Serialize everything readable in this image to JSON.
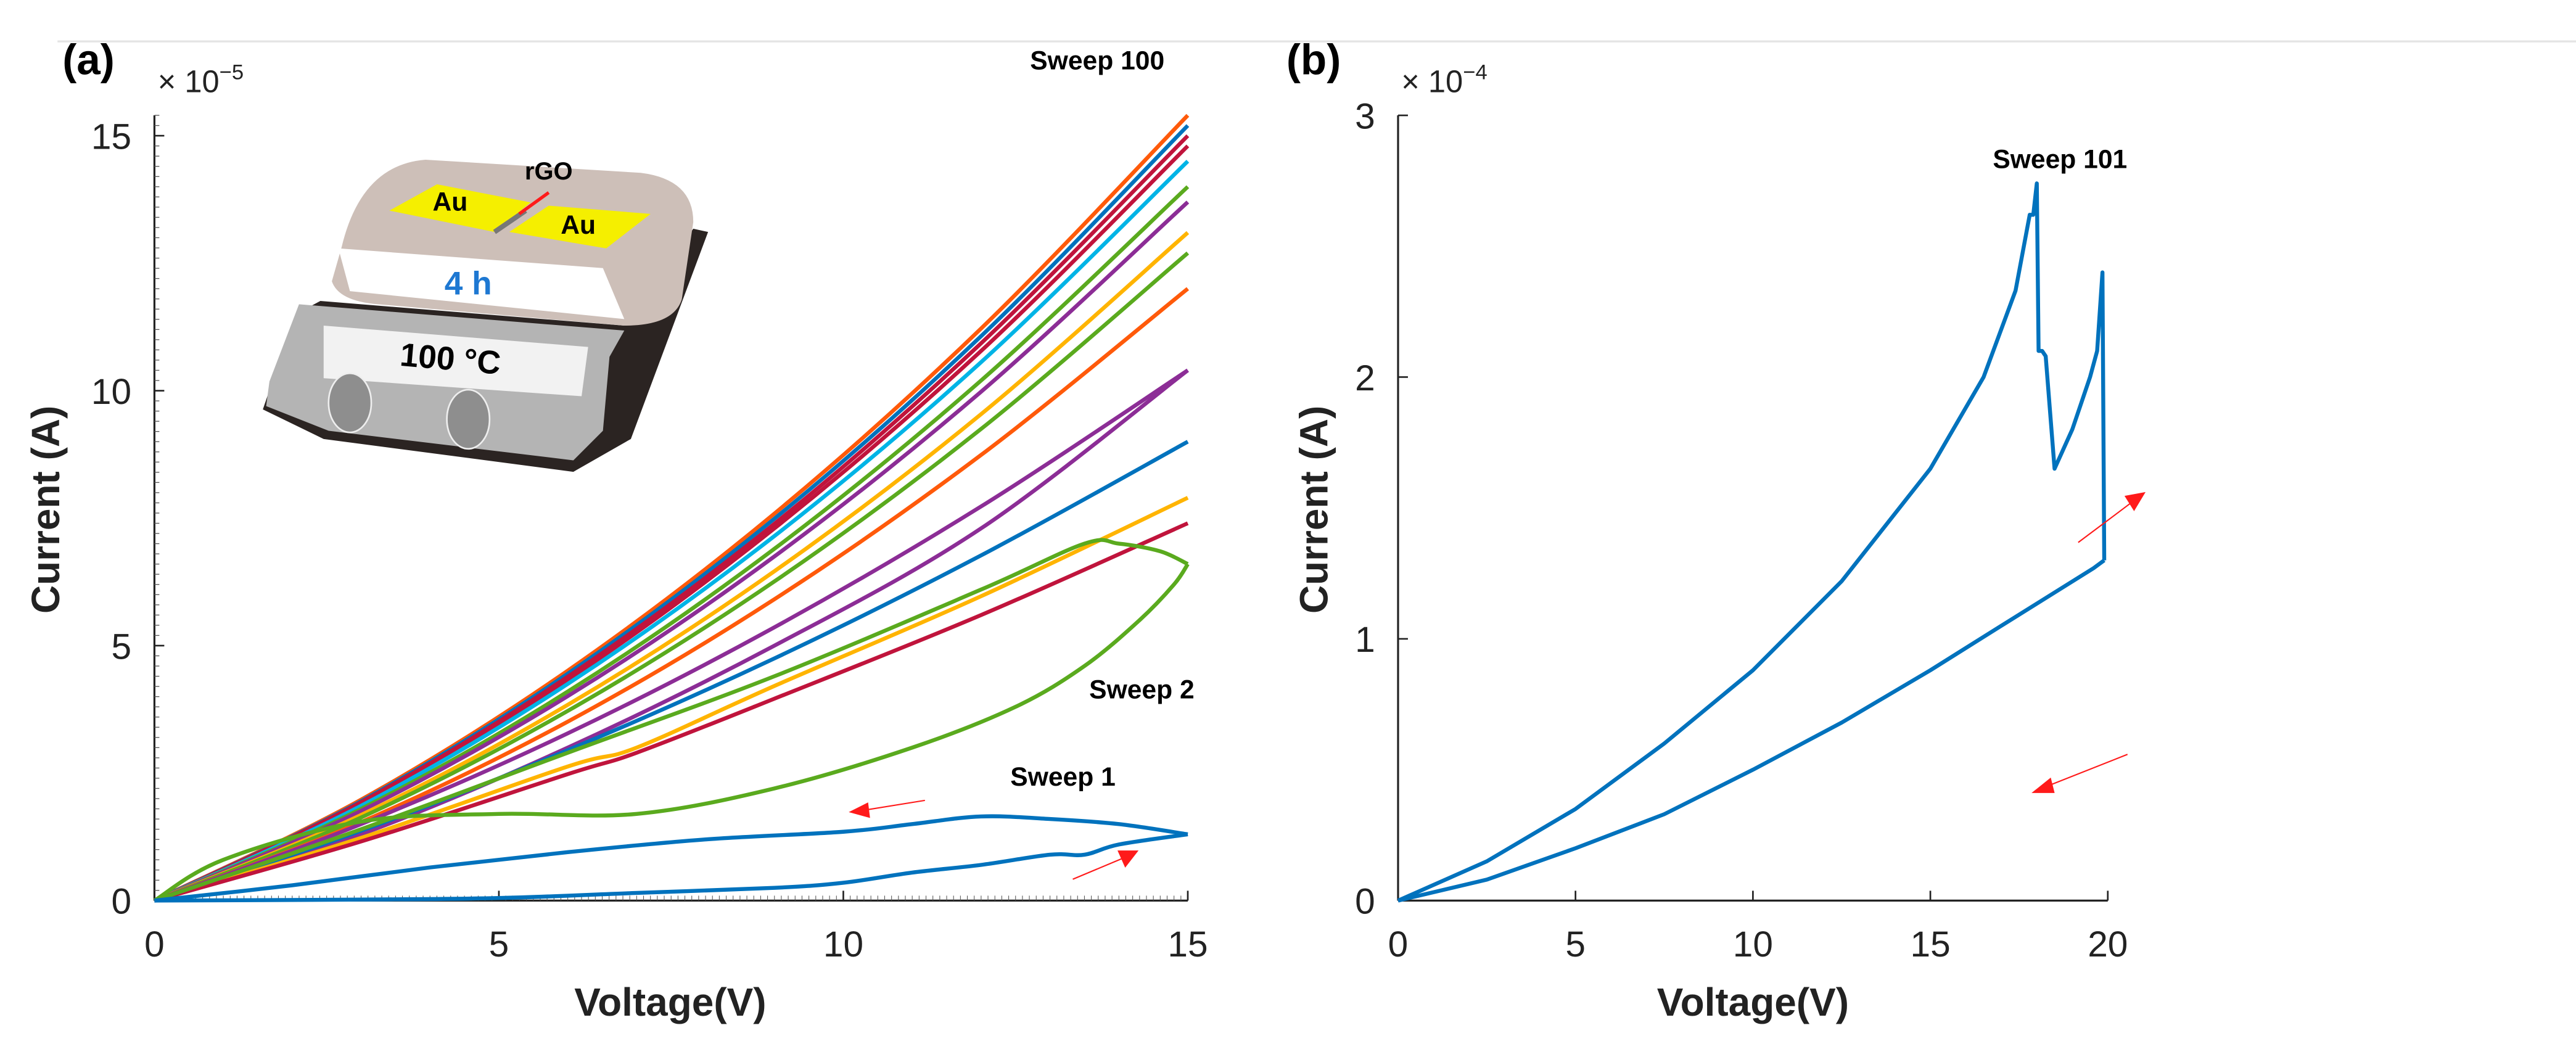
{
  "chart_data": [
    {
      "panel_label": "(a)",
      "type": "line",
      "xlabel": "Voltage(V)",
      "ylabel": "Current (A)",
      "y_multiplier": "× 10",
      "y_exponent": "−5",
      "xlim": [
        0,
        15
      ],
      "ylim": [
        0,
        15.4
      ],
      "xticks": [
        0,
        5,
        10,
        15
      ],
      "yticks": [
        0,
        5,
        10,
        15
      ],
      "grid": false,
      "annotations": [
        "Sweep 100",
        "Sweep 2",
        "Sweep 1"
      ],
      "arrow_color": "#FF1A1A",
      "inset": {
        "electrode_left": "Au",
        "electrode_right": "Au",
        "channel": "rGO",
        "time": "4 h",
        "temperature": "100 °C"
      },
      "series": [
        {
          "color": "#FF5A0A",
          "x": [
            0,
            3,
            6,
            9,
            12,
            15
          ],
          "y": [
            0,
            1.98,
            4.51,
            7.59,
            11.22,
            15.4
          ]
        },
        {
          "color": "#0072BD",
          "x": [
            0,
            3,
            6,
            9,
            12,
            15
          ],
          "y": [
            0,
            1.95,
            4.45,
            7.49,
            11.07,
            15.2
          ]
        },
        {
          "color": "#C0143C",
          "x": [
            0,
            3,
            6,
            9,
            12,
            15
          ],
          "y": [
            0,
            1.93,
            4.39,
            7.39,
            10.93,
            15.0
          ]
        },
        {
          "color": "#C0143C",
          "x": [
            0,
            3,
            6,
            9,
            12,
            15
          ],
          "y": [
            0,
            1.9,
            4.33,
            7.3,
            10.78,
            14.8
          ]
        },
        {
          "color": "#00B4E6",
          "x": [
            0,
            3,
            6,
            9,
            12,
            15
          ],
          "y": [
            0,
            1.86,
            4.25,
            7.15,
            10.56,
            14.5
          ]
        },
        {
          "color": "#5AAA1E",
          "x": [
            0,
            3,
            6,
            9,
            12,
            15
          ],
          "y": [
            0,
            1.8,
            4.1,
            6.9,
            10.2,
            14.0
          ]
        },
        {
          "color": "#8C2D96",
          "x": [
            0,
            3,
            6,
            9,
            12,
            15
          ],
          "y": [
            0,
            1.76,
            4.01,
            6.75,
            9.98,
            13.7
          ]
        },
        {
          "color": "#FFB400",
          "x": [
            0,
            3,
            6,
            9,
            12,
            15
          ],
          "y": [
            0,
            1.68,
            3.84,
            6.46,
            9.54,
            13.1
          ]
        },
        {
          "color": "#5AAA1E",
          "x": [
            0,
            3,
            6,
            9,
            12,
            15
          ],
          "y": [
            0,
            1.63,
            3.72,
            6.26,
            9.25,
            12.7
          ]
        },
        {
          "color": "#FF5A0A",
          "x": [
            0,
            3,
            6,
            9,
            12,
            15
          ],
          "y": [
            0,
            1.54,
            3.51,
            5.91,
            8.74,
            12.0
          ]
        },
        {
          "color": "#8C2D96",
          "x": [
            0,
            3,
            6,
            9,
            12,
            15
          ],
          "y": [
            0,
            1.5,
            3.28,
            5.36,
            7.73,
            10.4
          ]
        },
        {
          "color": "#8C2D96",
          "x": [
            15,
            12,
            9,
            6,
            3,
            0
          ],
          "y": [
            10.4,
            7.3,
            5.0,
            3.0,
            1.3,
            0
          ]
        },
        {
          "color": "#0072BD",
          "x": [
            0,
            3,
            6,
            9,
            12,
            15
          ],
          "y": [
            0,
            1.37,
            2.95,
            4.75,
            6.77,
            9.0
          ]
        },
        {
          "color": "#FFB400",
          "x": [
            0,
            3,
            6,
            7,
            9,
            12,
            15
          ],
          "y": [
            0,
            1.23,
            2.63,
            3.0,
            4.21,
            5.97,
            7.9
          ]
        },
        {
          "color": "#C0143C",
          "x": [
            0,
            3,
            6,
            7,
            9,
            12,
            15
          ],
          "y": [
            0,
            1.16,
            2.48,
            2.9,
            3.96,
            5.6,
            7.4
          ]
        },
        {
          "color": "#5AAA1E",
          "x": [
            0,
            1,
            3,
            5,
            7,
            9,
            11,
            12.5,
            13.5,
            14.3,
            14.8,
            15
          ],
          "y": [
            0,
            0.8,
            1.55,
            1.7,
            1.7,
            2.2,
            3.0,
            3.8,
            4.6,
            5.5,
            6.2,
            6.6
          ]
        },
        {
          "color": "#5AAA1E",
          "x": [
            15,
            14.6,
            14,
            13.5,
            12,
            9,
            6,
            3,
            0
          ],
          "y": [
            6.6,
            6.85,
            7.0,
            7.0,
            6.1,
            4.4,
            2.9,
            1.4,
            0
          ]
        },
        {
          "color": "#0072BD",
          "x": [
            0,
            3,
            5,
            7,
            9,
            10,
            11,
            12,
            13,
            13.5,
            14,
            15
          ],
          "y": [
            0,
            0.02,
            0.05,
            0.15,
            0.25,
            0.35,
            0.55,
            0.7,
            0.9,
            0.9,
            1.1,
            1.3
          ]
        },
        {
          "color": "#0072BD",
          "x": [
            15,
            14,
            13,
            12,
            11,
            10,
            8,
            6,
            4,
            2,
            0
          ],
          "y": [
            1.3,
            1.5,
            1.6,
            1.65,
            1.5,
            1.35,
            1.2,
            0.95,
            0.65,
            0.3,
            0
          ]
        }
      ]
    },
    {
      "panel_label": "(b)",
      "type": "line",
      "xlabel": "Voltage(V)",
      "ylabel": "Current (A)",
      "y_multiplier": "× 10",
      "y_exponent": "−4",
      "xlim": [
        0,
        20
      ],
      "ylim": [
        0,
        3
      ],
      "xticks": [
        0,
        5,
        10,
        15,
        20
      ],
      "yticks": [
        0,
        1,
        2,
        3
      ],
      "grid": false,
      "annotations": [
        "Sweep 101"
      ],
      "arrow_color": "#FF1A1A",
      "series": [
        {
          "color": "#0072BD",
          "x": [
            0,
            2.5,
            5,
            7.5,
            10,
            12.5,
            15,
            16.5,
            17.4,
            17.8,
            17.9,
            18.0,
            18.05,
            18.15,
            18.25,
            18.5,
            19,
            19.5,
            19.7,
            19.85,
            19.9
          ],
          "y": [
            0,
            0.15,
            0.35,
            0.6,
            0.88,
            1.22,
            1.65,
            2.0,
            2.33,
            2.62,
            2.62,
            2.74,
            2.1,
            2.1,
            2.08,
            1.65,
            1.8,
            2.0,
            2.1,
            2.4,
            1.3
          ]
        },
        {
          "color": "#0072BD",
          "x": [
            19.9,
            19.6,
            17,
            15,
            12.5,
            10,
            7.5,
            5,
            2.5,
            0
          ],
          "y": [
            1.3,
            1.27,
            1.05,
            0.88,
            0.68,
            0.5,
            0.33,
            0.2,
            0.08,
            0
          ]
        }
      ]
    }
  ]
}
